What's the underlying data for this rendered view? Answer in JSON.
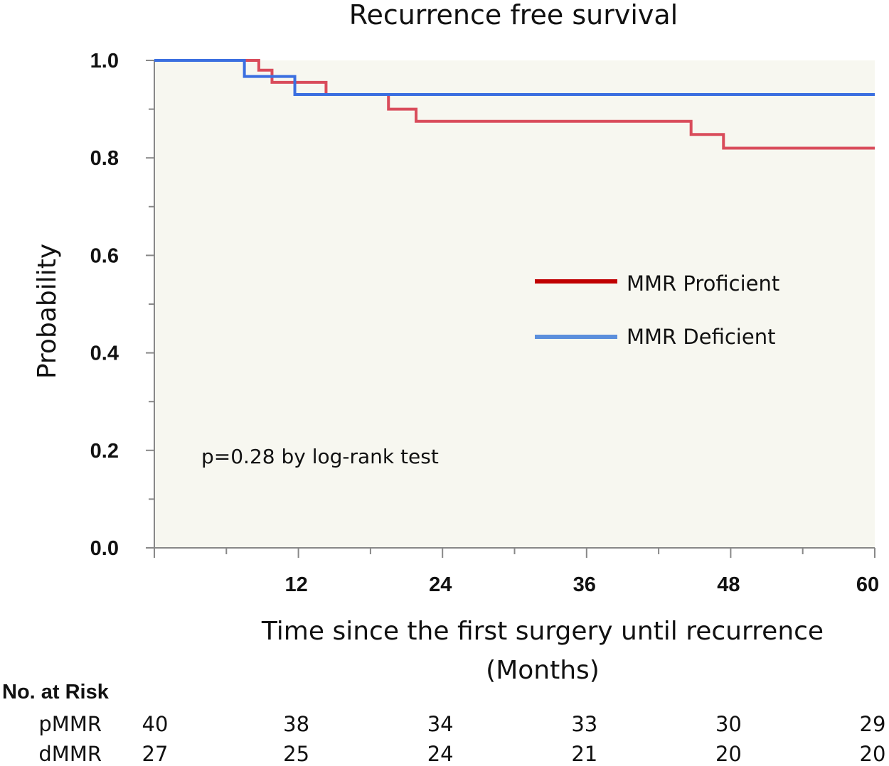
{
  "chart_data": {
    "type": "line",
    "step": true,
    "title": "Recurrence free survival",
    "xlabel_line1": "Time since the first surgery until recurrence",
    "xlabel_line2": "(Months)",
    "ylabel": "Probability",
    "xlim": [
      0,
      60
    ],
    "ylim": [
      0,
      1.0
    ],
    "x_ticks": [
      12,
      24,
      36,
      48,
      60
    ],
    "y_ticks": [
      "0.0",
      "0.2",
      "0.4",
      "0.6",
      "0.8",
      "1.0"
    ],
    "legend_position": "center-right",
    "annotation": "p=0.28 by log-rank test",
    "colors": {
      "plot_bg": "#f7f7f0",
      "axis": "#888888"
    },
    "series": [
      {
        "name": "MMR Proficient",
        "legend_color": "#c00000",
        "color": "#d94c5b",
        "steps": [
          [
            0,
            1.0
          ],
          [
            8.7,
            0.98
          ],
          [
            9.8,
            0.955
          ],
          [
            14.3,
            0.93
          ],
          [
            19.5,
            0.9
          ],
          [
            21.8,
            0.875
          ],
          [
            44.7,
            0.848
          ],
          [
            47.4,
            0.82
          ],
          [
            60,
            0.82
          ]
        ]
      },
      {
        "name": "MMR Deficient",
        "legend_color": "#5b8fdc",
        "color": "#3b6fe0",
        "steps": [
          [
            0,
            1.0
          ],
          [
            7.5,
            0.967
          ],
          [
            11.7,
            0.93
          ],
          [
            60,
            0.93
          ]
        ]
      }
    ]
  },
  "risk_table": {
    "header": "No. at Risk",
    "times": [
      0,
      12,
      24,
      36,
      48,
      60
    ],
    "rows": [
      {
        "label": "pMMR",
        "values": [
          "40",
          "38",
          "34",
          "33",
          "30",
          "29"
        ]
      },
      {
        "label": "dMMR",
        "values": [
          "27",
          "25",
          "24",
          "21",
          "20",
          "20"
        ]
      }
    ]
  }
}
